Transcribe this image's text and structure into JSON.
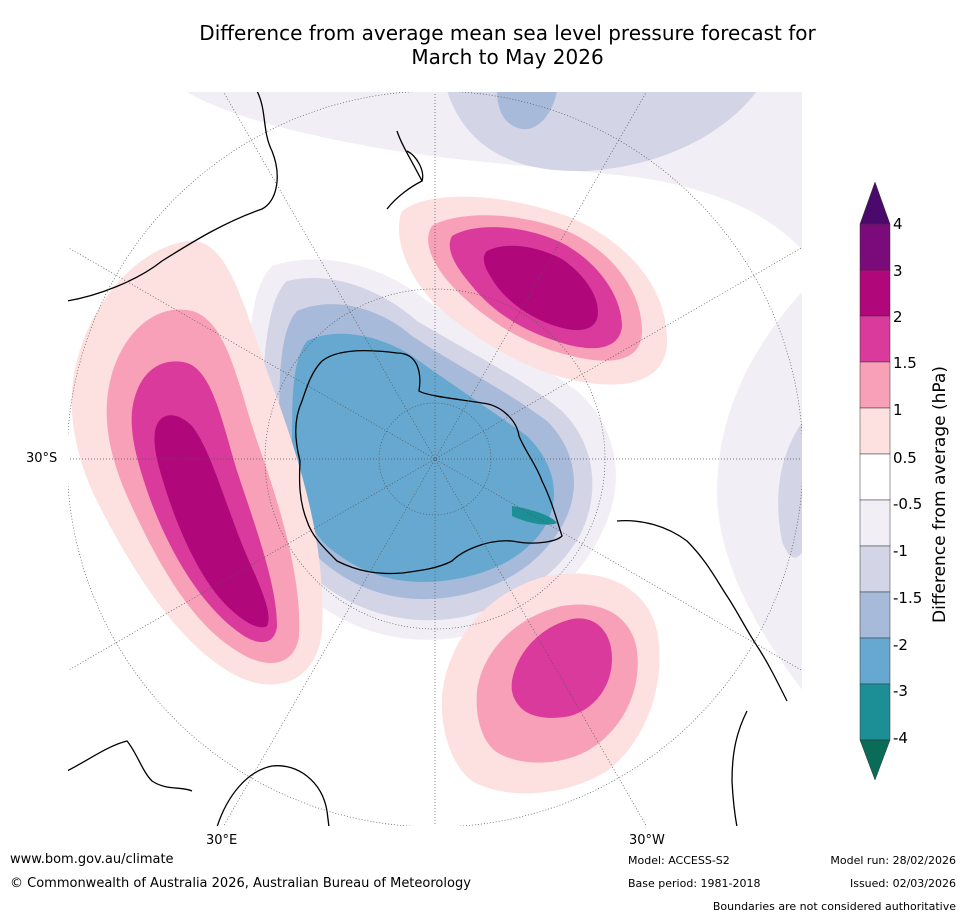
{
  "title": {
    "line1": "Difference from average mean sea level pressure forecast for",
    "line2": "March to May 2026"
  },
  "map": {
    "projection": "South polar stereographic",
    "lat_label": "30°S",
    "lon_labels": [
      "30°E",
      "30°W"
    ]
  },
  "colorbar": {
    "label": "Difference from average (hPa)",
    "ticks": [
      "4",
      "3",
      "2",
      "1.5",
      "1",
      "0.5",
      "-0.5",
      "-1",
      "-1.5",
      "-2",
      "-3",
      "-4"
    ],
    "colors": {
      "above_4": "#4a0a6b",
      "3_to_4": "#7b0a7a",
      "2_to_3": "#b0087a",
      "1.5_to_2": "#da3a9c",
      "1_to_1.5": "#f7a0b8",
      "0.5_to_1": "#fde0e0",
      "neutral": "#ffffff",
      "-1_to_-0.5": "#f2eef6",
      "-1.5_to_-1": "#d3d4e6",
      "-2_to_-1.5": "#a7bad9",
      "-3_to_-2": "#66a8cf",
      "-4_to_-3": "#1c8f96",
      "below_-4": "#0a6b58"
    }
  },
  "footer": {
    "url": "www.bom.gov.au/climate",
    "copyright": "© Commonwealth of Australia 2026, Australian Bureau of Meteorology",
    "model": "Model: ACCESS-S2",
    "base_period": "Base period: 1981-2018",
    "model_run": "Model run: 28/02/2026",
    "issued": "Issued: 02/03/2026",
    "disclaimer": "Boundaries are not considered authoritative"
  }
}
